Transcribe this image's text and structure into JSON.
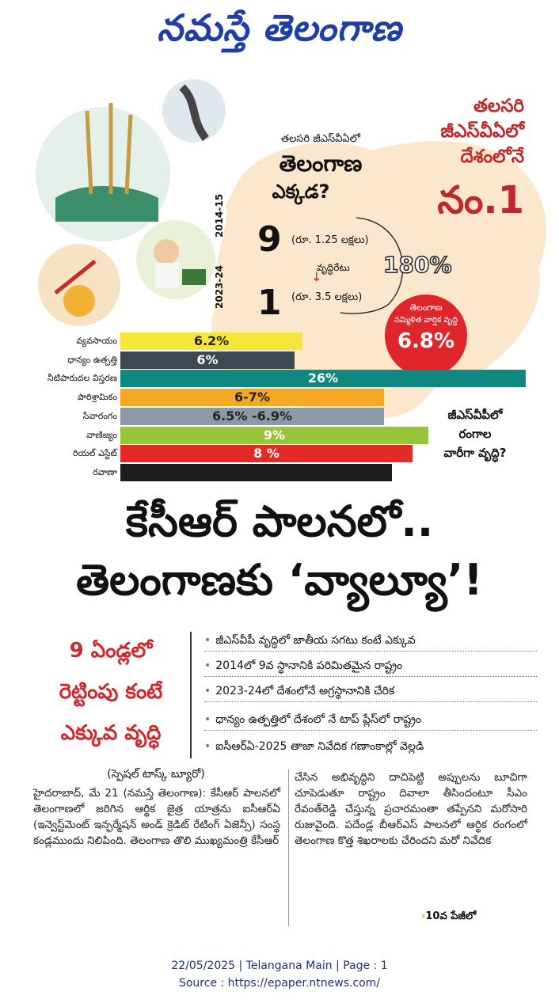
{
  "masthead": "నమస్తే తెలంగాణ",
  "graphic": {
    "right_title_lines": [
      "తలసరి",
      "జీఎస్‌వీఏలో",
      "దేశంలోనే"
    ],
    "right_rank": "నం.1",
    "center_question_line1": "తలసరి జీఎస్‌వీఏలో",
    "center_question_line2": "తెలంగాణ",
    "center_question_line3": "ఎక్కడ?",
    "year_label_top": "2014-15",
    "year_label_bottom": "2023-24",
    "rank_2014": "9",
    "value_2014": "(రూ. 1.25 లక్షలు)",
    "rank_2023": "1",
    "value_2023": "(రూ. 3.5 లక్షలు)",
    "growth_rate_label": "వృద్ధిరేటు",
    "growth_rate_value": "180%",
    "badge_line1": "తెలంగాణ",
    "badge_line2": "సమ్మిళిత వార్షిక వృద్ధి",
    "badge_value": "6.8%",
    "side_note_lines": [
      "జీఎస్‌వీపీలో",
      "రంగాల",
      "వారీగా వృద్ధి?"
    ]
  },
  "chart_data": {
    "type": "bar",
    "categories": [
      "వ్యవసాయం",
      "ధాన్యం ఉత్పత్తి",
      "నీటిపారుదల విస్తరణ",
      "పారిశ్రామికం",
      "సేవారంగం",
      "వాణిజ్యం",
      "రియల్ ఎస్టేట్",
      "రవాణా"
    ],
    "value_labels": [
      "6.2%",
      "6%",
      "26%",
      "6-7%",
      "6.5% -6.9%",
      "9%",
      "8 %",
      ""
    ],
    "bar_lengths_relative": [
      0.45,
      0.43,
      1.0,
      0.65,
      0.65,
      0.76,
      0.72,
      0.67
    ],
    "colors": [
      "#f5e63a",
      "#3b4a52",
      "#10877f",
      "#f4a823",
      "#8a9aa6",
      "#98c53a",
      "#e22a26",
      "#1d1d1d"
    ],
    "label_colors": [
      "#222222",
      "#ffffff",
      "#ffffff",
      "#222222",
      "#222222",
      "#ffffff",
      "#ffffff",
      "#ffffff"
    ]
  },
  "headline": {
    "line1": "కేసీఆర్ పాలనలో..",
    "line2": "తెలంగాణకు ‘వ్యాల్యూ’!"
  },
  "subhead_lines": [
    "9 ఏండ్లలో",
    "రెట్టింపు కంటే",
    "ఎక్కువ వృద్ధి"
  ],
  "bullets": [
    "జీఎస్‌వీపీ వృద్ధిలో జాతీయ సగటు కంటే ఎక్కువ",
    "2014లో 9వ స్థానానికి పరిమితమైన రాష్ట్రం",
    "2023-24లో దేశంలోనే అగ్రస్థానానికి చేరిక",
    "ధాన్యం ఉత్పత్తిలో దేశంలో నే టాప్ ప్లేస్‌లో రాష్ట్రం",
    "ఐసీఆర్ఏ-2025 తాజా నివేదిక గణాంకాల్లో వెల్లడి"
  ],
  "article": {
    "byline": "(స్పెషల్ టాస్క్ బ్యూరో)",
    "col1": "హైదరాబాద్, మే 21 (నమస్తే తెలంగాణ): కేసీఆర్ పాలనలో తెలంగాణలో జరిగిన ఆర్థిక జైత్ర యాత్రను ఐసీఆర్‌ఏ (ఇన్వెస్ట్‌మెంట్ ఇన్ఫర్మేషన్ అండ్ క్రెడిట్ రేటింగ్ ఏజెన్సీ) సంస్థ కండ్లముందు నిలిపింది. తెలంగాణ తొలి ముఖ్యమంత్రి కేసీఆర్",
    "col2": "చేసిన అభివృద్ధిని దాచిపెట్టి అప్పులను బూచిగా చూపెడుతూ రాష్ట్రం దివాలా తీసిందంటూ సీఎం రేవంత్‌రెడ్డి చేస్తున్న ప్రచారమంతా తప్పేనని మరోసారి రుజువైంది. పదేండ్ల బీఆర్‌ఎస్ పాలనలో ఆర్థిక రంగంలో తెలంగాణ కొత్త శిఖరాలకు చేరిందని మరో నివేదిక",
    "continued": "10వ పేజీలో"
  },
  "footer": {
    "line1": "22/05/2025 | Telangana Main | Page : 1",
    "line2": "Source : https://epaper.ntnews.com/"
  }
}
